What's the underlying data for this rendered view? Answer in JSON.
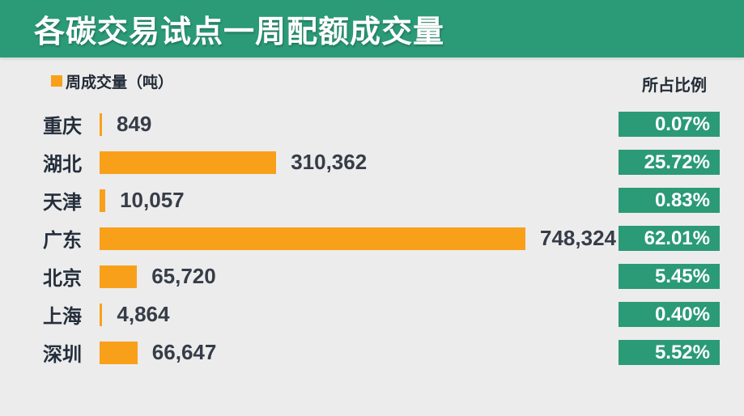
{
  "title": "各碳交易试点一周配额成交量",
  "legend": {
    "label": "周成交量（吨）",
    "swatch_icon": "orange-square-icon"
  },
  "right_header": "所占比例",
  "colors": {
    "green": "#2b9a76",
    "orange": "#f9a01b",
    "background": "#ececec",
    "ink": "#222b36",
    "title_text": "#ffffff",
    "badge_text": "#ffffff"
  },
  "chart_data": {
    "type": "bar",
    "orientation": "horizontal",
    "title": "各碳交易试点一周配额成交量",
    "xlabel": "",
    "ylabel": "",
    "xlim": [
      0,
      748324
    ],
    "grid": false,
    "legend_position": "top-left",
    "categories": [
      "重庆",
      "湖北",
      "天津",
      "广东",
      "北京",
      "上海",
      "深圳"
    ],
    "series": [
      {
        "name": "周成交量（吨）",
        "values": [
          849,
          310362,
          10057,
          748324,
          65720,
          4864,
          66647
        ]
      }
    ],
    "value_labels": [
      "849",
      "310,362",
      "10,057",
      "748,324",
      "65,720",
      "4,864",
      "66,647"
    ],
    "percent_column_header": "所占比例",
    "percent_labels": [
      "0.07%",
      "25.72%",
      "0.83%",
      "62.01%",
      "5.45%",
      "0.40%",
      "5.52%"
    ]
  }
}
